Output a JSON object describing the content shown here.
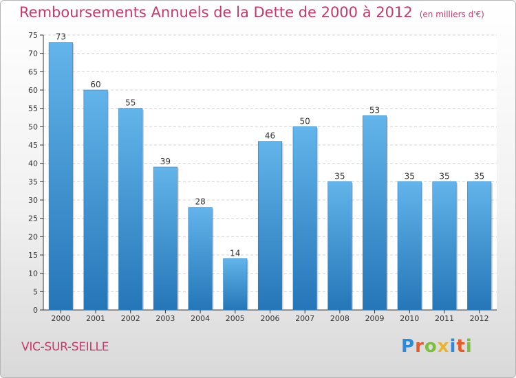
{
  "title": "Remboursements Annuels de la Dette de 2000 à 2012",
  "unit": "(en milliers d'€)",
  "city": "VIC-SUR-SEILLE",
  "logo": {
    "letters": [
      "P",
      "r",
      "o",
      "x",
      "i",
      "t",
      "i"
    ],
    "colors": [
      "#2e8ad8",
      "#e65a2a",
      "#7cbf3c",
      "#e8b52c",
      "#2e8ad8",
      "#e65a2a",
      "#7cbf3c"
    ]
  },
  "colors": {
    "bar_light": "#5aaee6",
    "bar_dark": "#2a7fc0",
    "title": "#c8386b"
  },
  "chart_data": {
    "type": "bar",
    "categories": [
      "2000",
      "2001",
      "2002",
      "2003",
      "2004",
      "2005",
      "2006",
      "2007",
      "2008",
      "2009",
      "2010",
      "2011",
      "2012"
    ],
    "values": [
      73,
      60,
      55,
      39,
      28,
      14,
      46,
      50,
      35,
      53,
      35,
      35,
      35
    ],
    "ylim": [
      0,
      75
    ],
    "yticks": [
      0,
      5,
      10,
      15,
      20,
      25,
      30,
      35,
      40,
      45,
      50,
      55,
      60,
      65,
      70,
      75
    ],
    "grid": true,
    "data_labels": true
  }
}
